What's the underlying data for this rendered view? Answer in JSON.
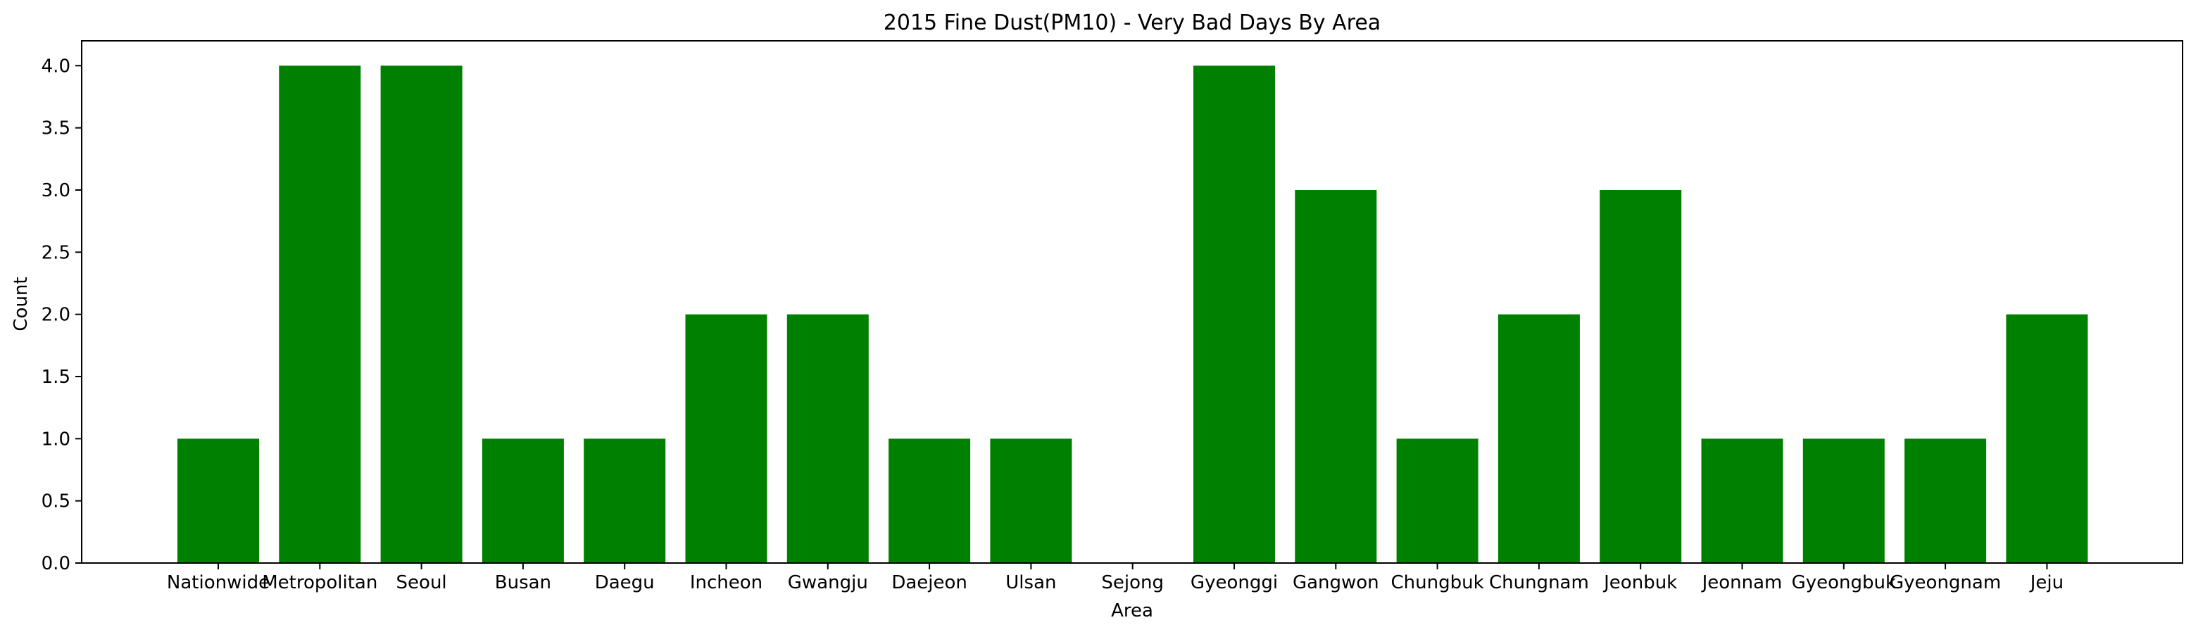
{
  "chart_data": {
    "type": "bar",
    "title": "2015 Fine Dust(PM10) - Very Bad Days By Area",
    "xlabel": "Area",
    "ylabel": "Count",
    "categories": [
      "Nationwide",
      "Metropolitan",
      "Seoul",
      "Busan",
      "Daegu",
      "Incheon",
      "Gwangju",
      "Daejeon",
      "Ulsan",
      "Sejong",
      "Gyeonggi",
      "Gangwon",
      "Chungbuk",
      "Chungnam",
      "Jeonbuk",
      "Jeonnam",
      "Gyeongbuk",
      "Gyeongnam",
      "Jeju"
    ],
    "values": [
      1,
      4,
      4,
      1,
      1,
      2,
      2,
      1,
      1,
      0,
      4,
      3,
      1,
      2,
      3,
      1,
      1,
      1,
      2
    ],
    "ylim": [
      0,
      4.2
    ],
    "yticks": [
      "0.0",
      "0.5",
      "1.0",
      "1.5",
      "2.0",
      "2.5",
      "3.0",
      "3.5",
      "4.0"
    ],
    "bar_color": "#008000",
    "grid": false
  }
}
